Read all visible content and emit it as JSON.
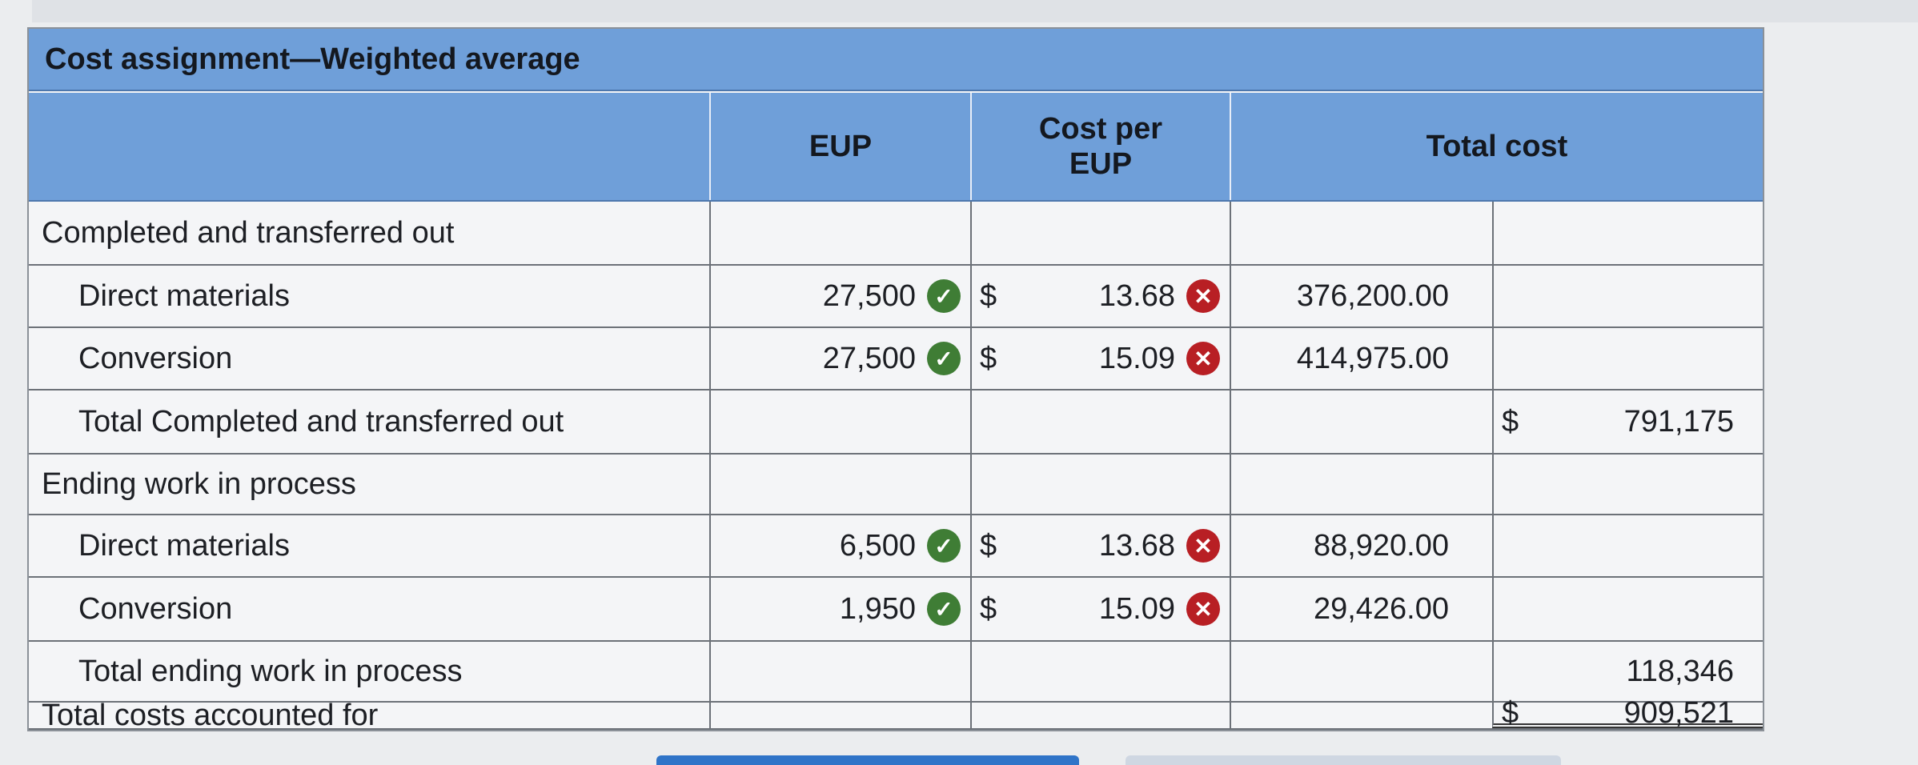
{
  "title": "Cost assignment—Weighted average",
  "headers": {
    "eup": "EUP",
    "cost_per_eup": "Cost per EUP",
    "total_cost": "Total cost"
  },
  "rows": {
    "completed_header": {
      "label": "Completed and transferred out"
    },
    "completed_dm": {
      "label": "Direct materials",
      "eup": "27,500",
      "eup_status": "correct",
      "dollar": "$",
      "cost_per_eup": "13.68",
      "cpe_status": "incorrect",
      "total_cost": "376,200.00"
    },
    "completed_conv": {
      "label": "Conversion",
      "eup": "27,500",
      "eup_status": "correct",
      "dollar": "$",
      "cost_per_eup": "15.09",
      "cpe_status": "incorrect",
      "total_cost": "414,975.00"
    },
    "completed_total": {
      "label": "Total Completed and transferred out",
      "dollar": "$",
      "total": "791,175"
    },
    "ending_header": {
      "label": "Ending work in process"
    },
    "ending_dm": {
      "label": "Direct materials",
      "eup": "6,500",
      "eup_status": "correct",
      "dollar": "$",
      "cost_per_eup": "13.68",
      "cpe_status": "incorrect",
      "total_cost": "88,920.00"
    },
    "ending_conv": {
      "label": "Conversion",
      "eup": "1,950",
      "eup_status": "correct",
      "dollar": "$",
      "cost_per_eup": "15.09",
      "cpe_status": "incorrect",
      "total_cost": "29,426.00"
    },
    "ending_total": {
      "label": "Total ending work in process",
      "total": "118,346"
    },
    "grand_total": {
      "label": "Total costs accounted for",
      "dollar": "$",
      "total": "909,521"
    }
  },
  "icons": {
    "correct": {
      "name": "check-circle-icon",
      "glyph": "✓",
      "color": "#3f7d35"
    },
    "incorrect": {
      "name": "x-circle-icon",
      "glyph": "✕",
      "color": "#b81f24"
    }
  },
  "colors": {
    "header_bg": "#6f9fd9",
    "grid_lines": "#6c7178"
  }
}
